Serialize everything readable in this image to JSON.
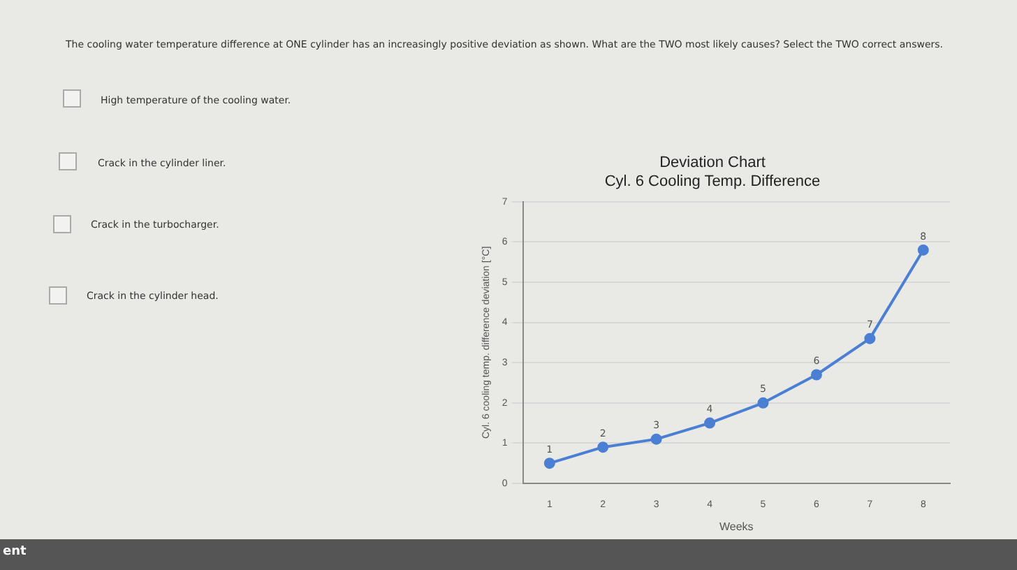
{
  "chart_data": {
    "type": "line",
    "title": "Deviation Chart",
    "subtitle": "Cyl. 6 Cooling Temp. Difference",
    "xlabel": "Weeks",
    "ylabel": "Cyl. 6 cooling temp. difference deviation [°C]",
    "categories": [
      "1",
      "2",
      "3",
      "4",
      "5",
      "6",
      "7",
      "8"
    ],
    "series": [
      {
        "color": "#4a7fd4",
        "values": [
          0.5,
          0.9,
          1.1,
          1.5,
          2.0,
          2.7,
          3.6,
          5.8
        ]
      }
    ],
    "ylim": [
      0,
      7
    ],
    "yticks": [
      0,
      1,
      2,
      3,
      4,
      5,
      6,
      7
    ],
    "grid": "y",
    "legend": false,
    "marker": "circle",
    "line_style": "solid",
    "annotations": [
      "The cooling water temperature difference at ONE cylinder has an increasingly positive deviation as shown. What are the TWO most likely causes? Select the TWO correct answers.",
      "High temperature of the cooling water.",
      "Crack in the cylinder liner.",
      "Crack in the turbocharger.",
      "Crack in the cylinder head.",
      "ent",
      {
        "text": "1",
        "x": "1",
        "y": 0.5
      },
      {
        "text": "2",
        "x": "2",
        "y": 0.9
      },
      {
        "text": "3",
        "x": "3",
        "y": 1.1
      },
      {
        "text": "4",
        "x": "4",
        "y": 1.5
      },
      {
        "text": "5",
        "x": "5",
        "y": 2.0
      },
      {
        "text": "6",
        "x": "6",
        "y": 2.7
      },
      {
        "text": "7",
        "x": "7",
        "y": 3.6
      },
      {
        "text": "8",
        "x": "8",
        "y": 5.8
      }
    ]
  }
}
